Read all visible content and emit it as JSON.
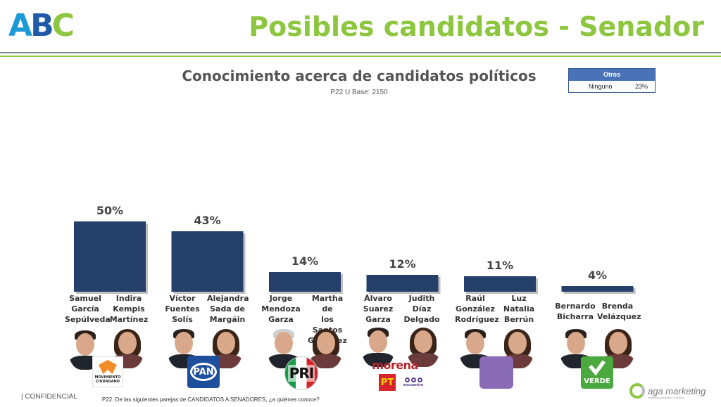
{
  "header": {
    "logo": [
      "A",
      "B",
      "C"
    ],
    "title": "Posibles candidatos - Senador"
  },
  "otros_table": {
    "header": "Otros",
    "rows": [
      {
        "label": "Ninguno",
        "value": "23%"
      }
    ]
  },
  "chart_data": {
    "type": "bar",
    "title": "Conocimiento acerca de candidatos políticos",
    "subtitle": "P22 U Base: 2150",
    "categories": [
      "Samuel García Sepúlveda / Indira Kempis Martínez",
      "Víctor Fuentes Solís / Alejandra Sada de Margáin",
      "Jorge Mendoza Garza / Martha de los Santos González",
      "Álvaro Suarez Garza / Judith Díaz Delgado",
      "Raúl González Rodríguez / Luz Natalia Berrún",
      "Bernardo Bicharra / Brenda Velázquez"
    ],
    "values": [
      50,
      43,
      14,
      12,
      11,
      4
    ],
    "value_labels": [
      "50%",
      "43%",
      "14%",
      "12%",
      "11%",
      "4%"
    ],
    "ylim": [
      0,
      100
    ],
    "bar_color": "#243f6a",
    "grid": false,
    "legend": "none"
  },
  "pairs": [
    {
      "a": [
        "Samuel",
        "García",
        "Sepúlveda"
      ],
      "b": [
        "Indira",
        "Kempis",
        "Martínez"
      ]
    },
    {
      "a": [
        "Víctor",
        "Fuentes",
        "Solís"
      ],
      "b": [
        "Alejandra",
        "Sada de",
        "Margáin"
      ]
    },
    {
      "a": [
        "Jorge",
        "Mendoza",
        "Garza"
      ],
      "b": [
        "Martha de",
        "los Santos",
        "González"
      ]
    },
    {
      "a": [
        "Álvaro",
        "Suarez",
        "Garza"
      ],
      "b": [
        "Judith",
        "Díaz",
        "Delgado"
      ]
    },
    {
      "a": [
        "Raúl",
        "González",
        "Rodríguez"
      ],
      "b": [
        "Luz",
        "Natalia",
        "Berrún"
      ]
    },
    {
      "a": [
        "Bernardo",
        "Bicharra"
      ],
      "b": [
        "Brenda",
        "Velázquez"
      ]
    }
  ],
  "parties": {
    "mc": "MOVIMIENTO CIUDADANO",
    "pan": "PAN",
    "pri": "PRI",
    "morena": "morena",
    "pt": "PT",
    "pes": "encuentro",
    "verde": "VERDE"
  },
  "footer": {
    "confidencial": "| CONFIDENCIAL",
    "footnote": "P22. De las siguientes parejas de CANDIDATOS A SENADORES, ¿a quiénes conoce?",
    "brand": "aga marketing",
    "tagline": "marketing ahorrativo efectivo"
  }
}
